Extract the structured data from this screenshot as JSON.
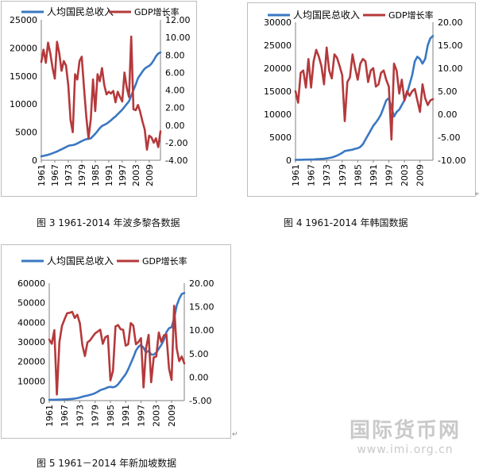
{
  "figures": [
    {
      "caption": "图 3 1961-2014 年波多黎各数据"
    },
    {
      "caption": "图 4 1961-2014 年韩国数据"
    },
    {
      "caption": "图 5 1961－2014 年新加坡数据"
    }
  ],
  "watermark": {
    "title": "国际货币网",
    "url": "www.imi.org.cn"
  },
  "colors": {
    "gni_line": "#3a78c2",
    "gdp_line": "#b5393b"
  },
  "chart_data": [
    {
      "type": "line",
      "title": "",
      "legend": [
        "人均国民总收入",
        "GDP增长率"
      ],
      "legend_position": "top",
      "x": [
        1961,
        1962,
        1963,
        1964,
        1965,
        1966,
        1967,
        1968,
        1969,
        1970,
        1971,
        1972,
        1973,
        1974,
        1975,
        1976,
        1977,
        1978,
        1979,
        1980,
        1981,
        1982,
        1983,
        1984,
        1985,
        1986,
        1987,
        1988,
        1989,
        1990,
        1991,
        1992,
        1993,
        1994,
        1995,
        1996,
        1997,
        1998,
        1999,
        2000,
        2001,
        2002,
        2003,
        2004,
        2005,
        2006,
        2007,
        2008,
        2009,
        2010,
        2011,
        2012,
        2013,
        2014
      ],
      "x_tick_labels": [
        "1961",
        "1967",
        "1973",
        "1979",
        "1985",
        "1991",
        "1997",
        "2003",
        "2009"
      ],
      "y_left": {
        "ylim": [
          0,
          25000
        ],
        "ticks": [
          "0",
          "5000",
          "10000",
          "15000",
          "20000",
          "25000"
        ]
      },
      "y_right": {
        "ylim": [
          -4,
          12
        ],
        "ticks": [
          "-4.00",
          "-2.00",
          "0.00",
          "2.00",
          "4.00",
          "6.00",
          "8.00",
          "10.00",
          "12.00"
        ]
      },
      "series": [
        {
          "name": "人均国民总收入",
          "axis": "left",
          "values": [
            700,
            780,
            880,
            980,
            1100,
            1250,
            1400,
            1550,
            1750,
            1950,
            2150,
            2350,
            2550,
            2650,
            2700,
            2800,
            3000,
            3200,
            3400,
            3600,
            3750,
            3800,
            3900,
            4300,
            4700,
            5200,
            5700,
            6100,
            6300,
            6500,
            6800,
            7100,
            7500,
            7800,
            8200,
            8600,
            9000,
            9500,
            10000,
            10500,
            11500,
            12500,
            13500,
            14600,
            15200,
            15800,
            16300,
            16600,
            16800,
            17200,
            17800,
            18500,
            19000,
            19200
          ]
        },
        {
          "name": "GDP增长率",
          "axis": "right",
          "values": [
            7.2,
            8.6,
            7.1,
            9.4,
            8.2,
            6.5,
            5.3,
            9.5,
            8.2,
            6.2,
            7.3,
            6.8,
            4.5,
            0.6,
            -0.8,
            5.8,
            5.2,
            7.3,
            7.8,
            4.2,
            1.0,
            -1.5,
            0.7,
            5.2,
            1.6,
            5.8,
            5.0,
            6.5,
            4.6,
            3.5,
            3.8,
            3.6,
            3.9,
            2.6,
            3.8,
            3.2,
            2.7,
            6.0,
            4.3,
            3.2,
            10.1,
            1.8,
            1.7,
            2.3,
            1.5,
            0.4,
            -0.5,
            -2.8,
            -1.2,
            -1.4,
            -2.0,
            -1.5,
            -2.5,
            -0.7
          ]
        }
      ]
    },
    {
      "type": "line",
      "title": "",
      "legend": [
        "人均国民总收入",
        "GDP增长率"
      ],
      "legend_position": "top",
      "x": [
        1961,
        1962,
        1963,
        1964,
        1965,
        1966,
        1967,
        1968,
        1969,
        1970,
        1971,
        1972,
        1973,
        1974,
        1975,
        1976,
        1977,
        1978,
        1979,
        1980,
        1981,
        1982,
        1983,
        1984,
        1985,
        1986,
        1987,
        1988,
        1989,
        1990,
        1991,
        1992,
        1993,
        1994,
        1995,
        1996,
        1997,
        1998,
        1999,
        2000,
        2001,
        2002,
        2003,
        2004,
        2005,
        2006,
        2007,
        2008,
        2009,
        2010,
        2011,
        2012,
        2013,
        2014
      ],
      "x_tick_labels": [
        "1961",
        "1967",
        "1973",
        "1979",
        "1985",
        "1991",
        "1997",
        "2003",
        "2009"
      ],
      "y_left": {
        "ylim": [
          0,
          30000
        ],
        "ticks": [
          "0",
          "5000",
          "10000",
          "15000",
          "20000",
          "25000",
          "30000"
        ]
      },
      "y_right": {
        "ylim": [
          -10,
          20
        ],
        "ticks": [
          "-10.00",
          "-5.00",
          "0.00",
          "5.00",
          "10.00",
          "15.00",
          "20.00"
        ]
      },
      "series": [
        {
          "name": "人均国民总收入",
          "axis": "left",
          "values": [
            90,
            100,
            110,
            120,
            130,
            140,
            160,
            180,
            220,
            260,
            300,
            330,
            400,
            500,
            600,
            800,
            1000,
            1300,
            1600,
            2000,
            2100,
            2200,
            2300,
            2500,
            2600,
            2900,
            3500,
            4500,
            5500,
            6500,
            7500,
            8200,
            9000,
            10000,
            11500,
            13000,
            13500,
            11500,
            9500,
            10500,
            11000,
            12000,
            13000,
            14500,
            16500,
            18500,
            21500,
            22500,
            22000,
            21000,
            22000,
            25000,
            26500,
            27000
          ]
        },
        {
          "name": "GDP增长率",
          "axis": "right",
          "values": [
            5.0,
            2.5,
            9.0,
            9.5,
            5.8,
            12.0,
            5.8,
            11.5,
            14.0,
            12.5,
            10.5,
            6.5,
            14.5,
            9.5,
            7.8,
            13.0,
            12.3,
            10.5,
            8.5,
            -1.5,
            7.0,
            8.0,
            13.0,
            10.0,
            7.5,
            11.0,
            12.0,
            11.5,
            7.0,
            9.5,
            10.0,
            6.0,
            6.5,
            9.0,
            9.5,
            7.5,
            6.0,
            -5.5,
            11.0,
            9.5,
            4.5,
            7.5,
            3.0,
            5.0,
            4.0,
            5.0,
            5.5,
            3.0,
            0.5,
            6.5,
            3.5,
            2.0,
            3.0,
            3.3
          ]
        }
      ]
    },
    {
      "type": "line",
      "title": "",
      "legend": [
        "人均国民总收入",
        "GDP增长率"
      ],
      "legend_position": "top",
      "x": [
        1961,
        1962,
        1963,
        1964,
        1965,
        1966,
        1967,
        1968,
        1969,
        1970,
        1971,
        1972,
        1973,
        1974,
        1975,
        1976,
        1977,
        1978,
        1979,
        1980,
        1981,
        1982,
        1983,
        1984,
        1985,
        1986,
        1987,
        1988,
        1989,
        1990,
        1991,
        1992,
        1993,
        1994,
        1995,
        1996,
        1997,
        1998,
        1999,
        2000,
        2001,
        2002,
        2003,
        2004,
        2005,
        2006,
        2007,
        2008,
        2009,
        2010,
        2011,
        2012,
        2013,
        2014
      ],
      "x_tick_labels": [
        "1961",
        "1967",
        "1973",
        "1979",
        "1985",
        "1991",
        "1997",
        "2003",
        "2009"
      ],
      "y_left": {
        "ylim": [
          0,
          60000
        ],
        "ticks": [
          "0",
          "10000",
          "20000",
          "30000",
          "40000",
          "50000",
          "60000"
        ]
      },
      "y_right": {
        "ylim": [
          -5,
          20
        ],
        "ticks": [
          "-5.00",
          "0.00",
          "5.00",
          "10.00",
          "15.00",
          "20.00"
        ]
      },
      "series": [
        {
          "name": "人均国民总收入",
          "axis": "left",
          "values": [
            400,
            430,
            460,
            500,
            530,
            580,
            640,
            700,
            780,
            900,
            1050,
            1250,
            1600,
            2000,
            2300,
            2600,
            2900,
            3300,
            3800,
            4500,
            5300,
            5800,
            6200,
            6800,
            7000,
            6800,
            7200,
            8300,
            10000,
            11800,
            13500,
            16000,
            19000,
            22000,
            25500,
            27500,
            28500,
            27000,
            24500,
            25500,
            23500,
            23500,
            24500,
            26500,
            28500,
            31000,
            35000,
            37000,
            37500,
            42000,
            48500,
            52000,
            54500,
            55000
          ]
        },
        {
          "name": "GDP增长率",
          "axis": "right",
          "values": [
            8.0,
            7.1,
            10.0,
            -3.7,
            7.5,
            10.9,
            12.3,
            13.6,
            13.7,
            13.9,
            12.6,
            13.3,
            11.5,
            6.8,
            4.5,
            7.4,
            7.8,
            8.6,
            9.3,
            9.7,
            10.1,
            7.1,
            8.5,
            8.8,
            -0.7,
            1.3,
            10.8,
            11.1,
            10.2,
            10.1,
            6.7,
            7.0,
            11.5,
            11.0,
            7.0,
            7.5,
            8.3,
            -2.2,
            6.2,
            9.0,
            -1.1,
            4.2,
            4.4,
            9.5,
            7.5,
            8.9,
            9.1,
            1.8,
            -0.6,
            15.2,
            6.2,
            3.4,
            4.4,
            2.9
          ]
        }
      ]
    }
  ]
}
